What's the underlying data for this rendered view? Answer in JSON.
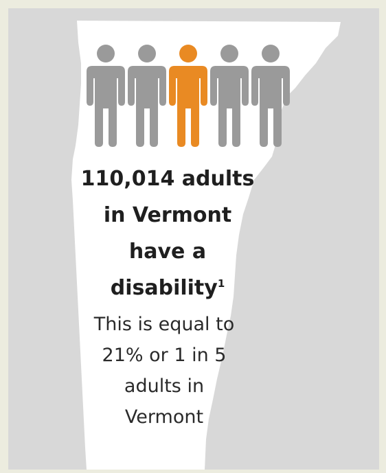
{
  "colors": {
    "page_background": "#ececdf",
    "panel_background": "#d8d8d8",
    "state_shape": "#ffffff",
    "person_gray": "#9a9a9a",
    "person_highlight": "#e98a23",
    "text": "#1f1f1f"
  },
  "icons": {
    "map": "vermont-state-outline",
    "people": [
      "person-icon",
      "person-icon",
      "person-icon-highlighted",
      "person-icon",
      "person-icon"
    ]
  },
  "ratio": {
    "highlighted": 1,
    "total": 5
  },
  "headline": {
    "line1": "110,014 adults",
    "line2": "in Vermont",
    "line3": "have a",
    "line4": "disability",
    "footnote": "1"
  },
  "subtext": {
    "line1": "This is equal to",
    "line2": "21% or 1 in 5",
    "line3": "adults in",
    "line4": "Vermont"
  }
}
